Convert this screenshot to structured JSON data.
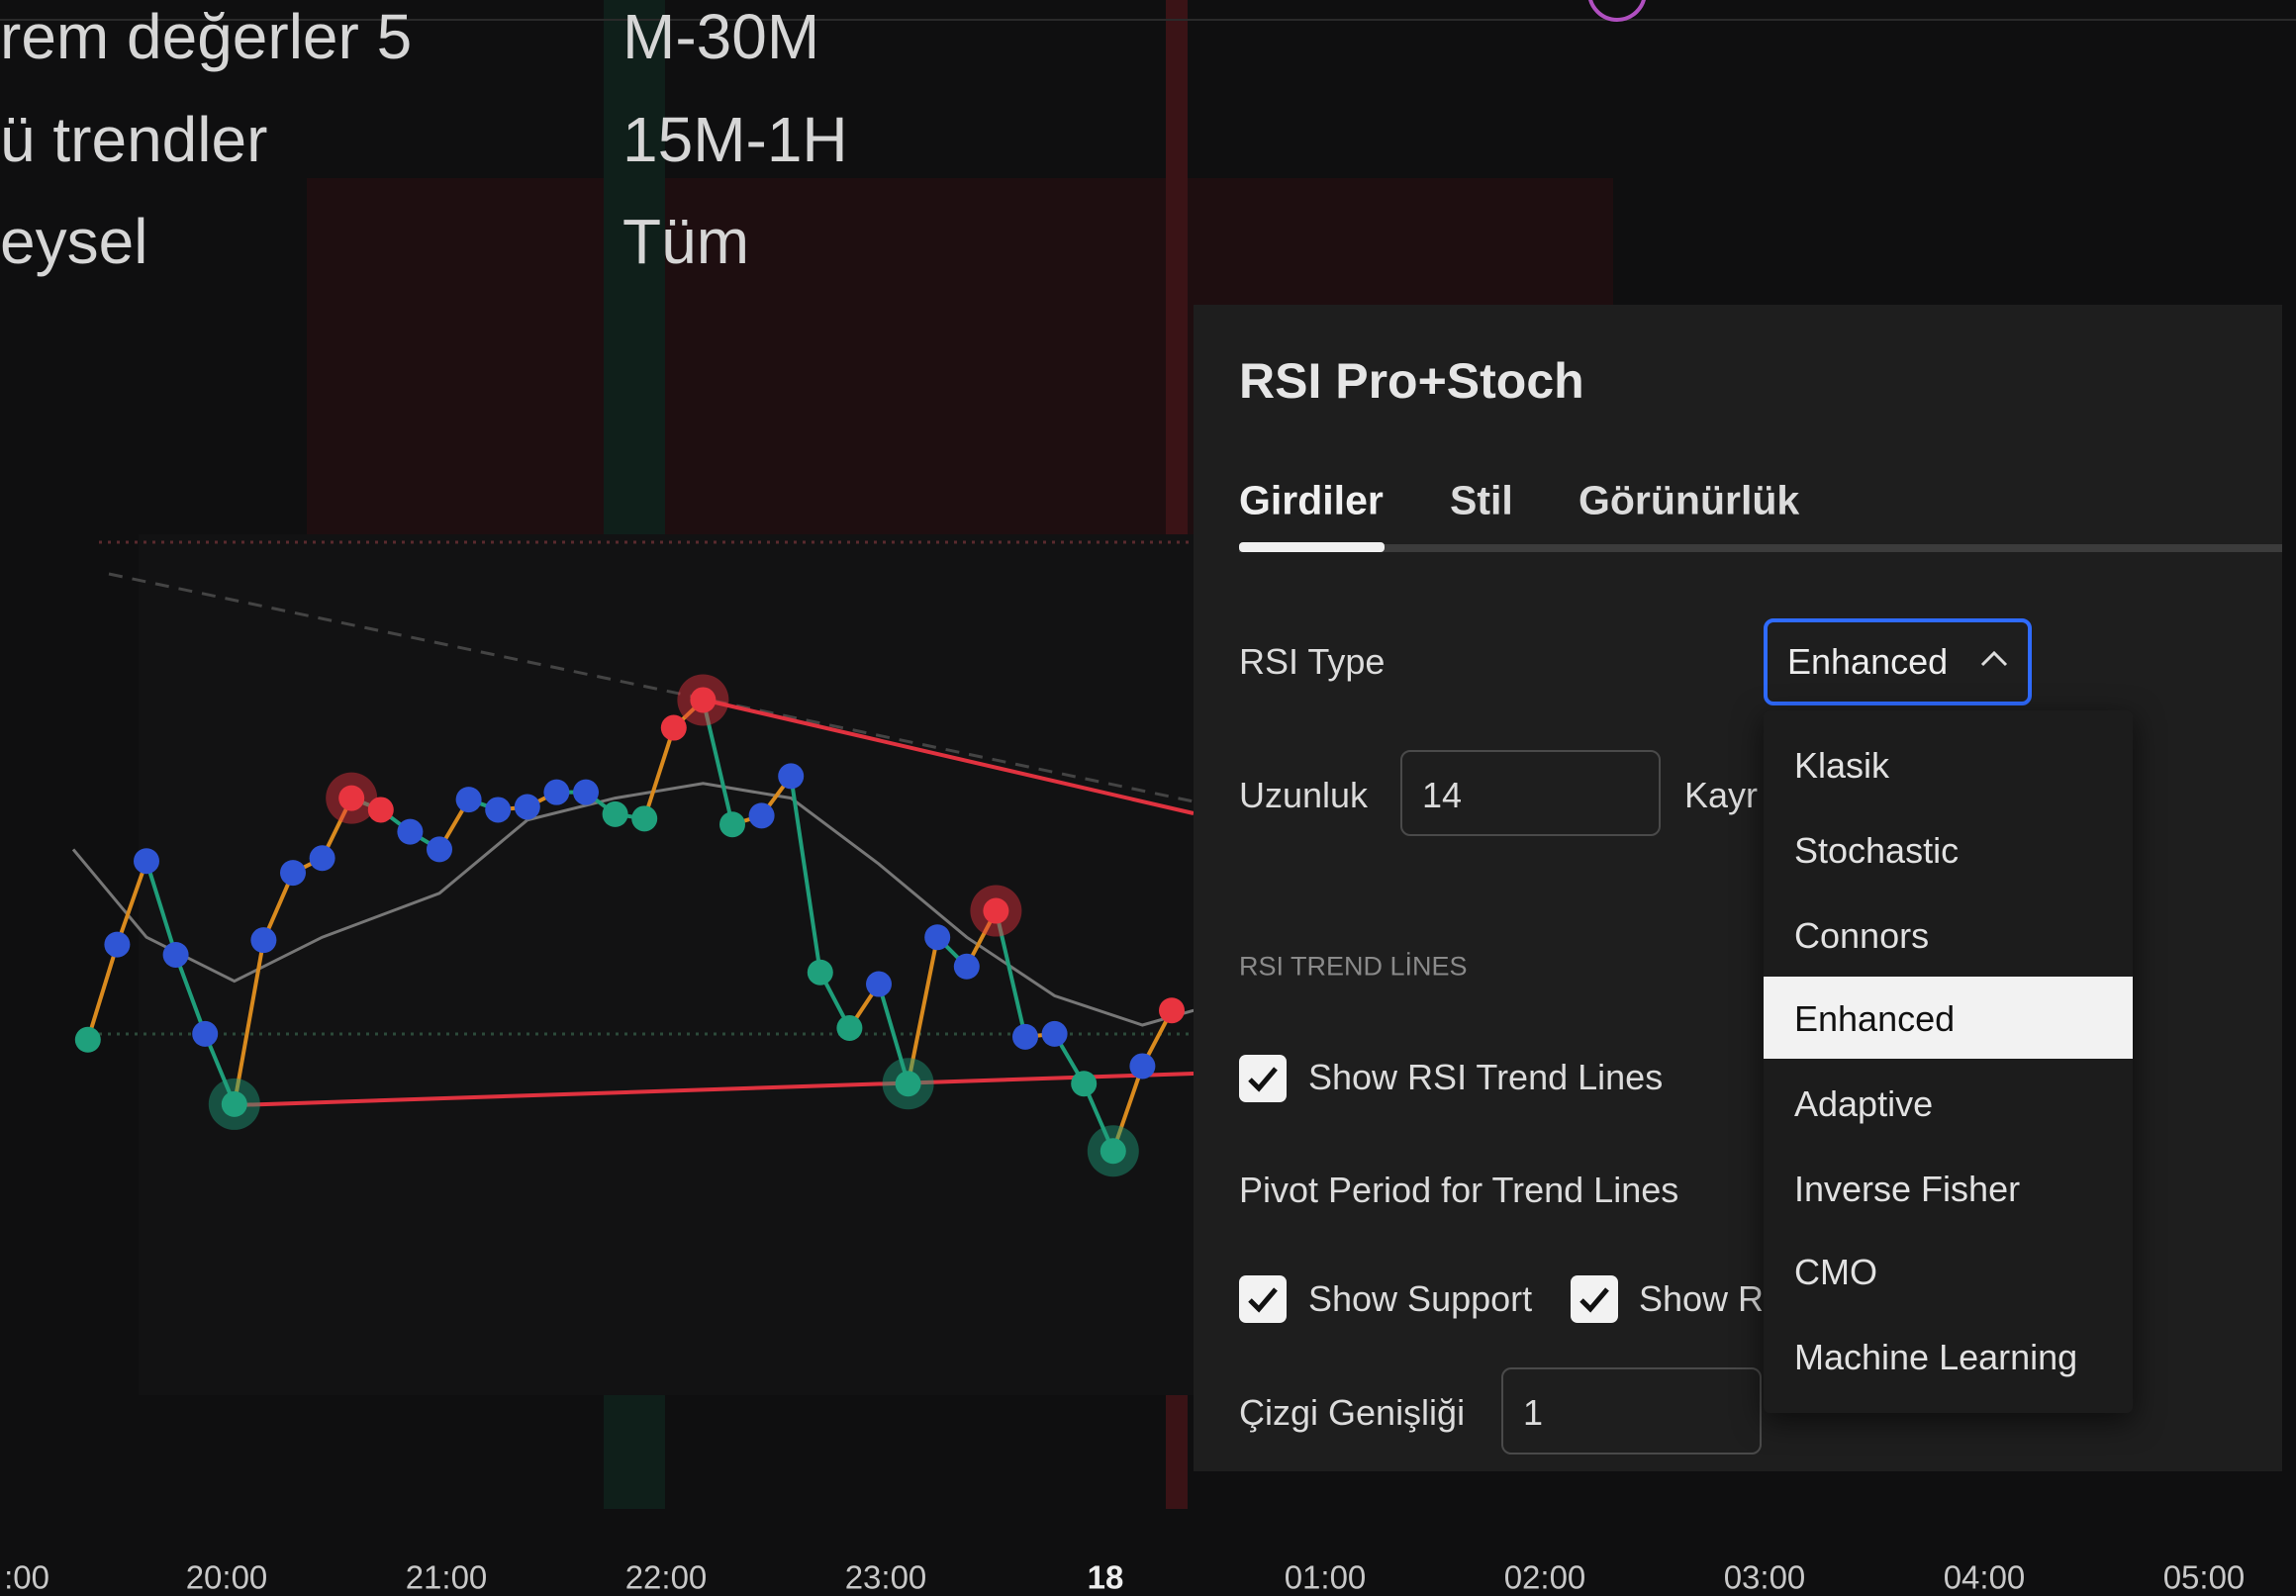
{
  "left_table": {
    "rows": [
      [
        "rem değerler  5",
        "M-30M"
      ],
      [
        "ü trendler",
        "15M-1H"
      ],
      [
        "eysel",
        "Tüm"
      ]
    ]
  },
  "time_axis": [
    ":00",
    "20:00",
    "21:00",
    "22:00",
    "23:00",
    "18",
    "01:00",
    "02:00",
    "03:00",
    "04:00",
    "05:00"
  ],
  "panel": {
    "title": "RSI Pro+Stoch",
    "tabs": [
      "Girdiler",
      "Stil",
      "Görünürlük"
    ],
    "rsi_type": {
      "label": "RSI Type",
      "value": "Enhanced"
    },
    "length": {
      "label": "Uzunluk",
      "value": "14",
      "next_label": "Kayr"
    },
    "section": "RSI TREND LİNES",
    "show_trend_lines": "Show RSI Trend Lines",
    "pivot_period": "Pivot Period for Trend Lines",
    "show_support": "Show Support",
    "show_resistance": "Show R",
    "line_width": {
      "label": "Çizgi Genişliği",
      "value": "1"
    }
  },
  "dropdown": {
    "options": [
      "Klasik",
      "Stochastic",
      "Connors",
      "Enhanced",
      "Adaptive",
      "Inverse Fisher",
      "CMO",
      "Machine Learning"
    ],
    "selected": 3
  }
}
